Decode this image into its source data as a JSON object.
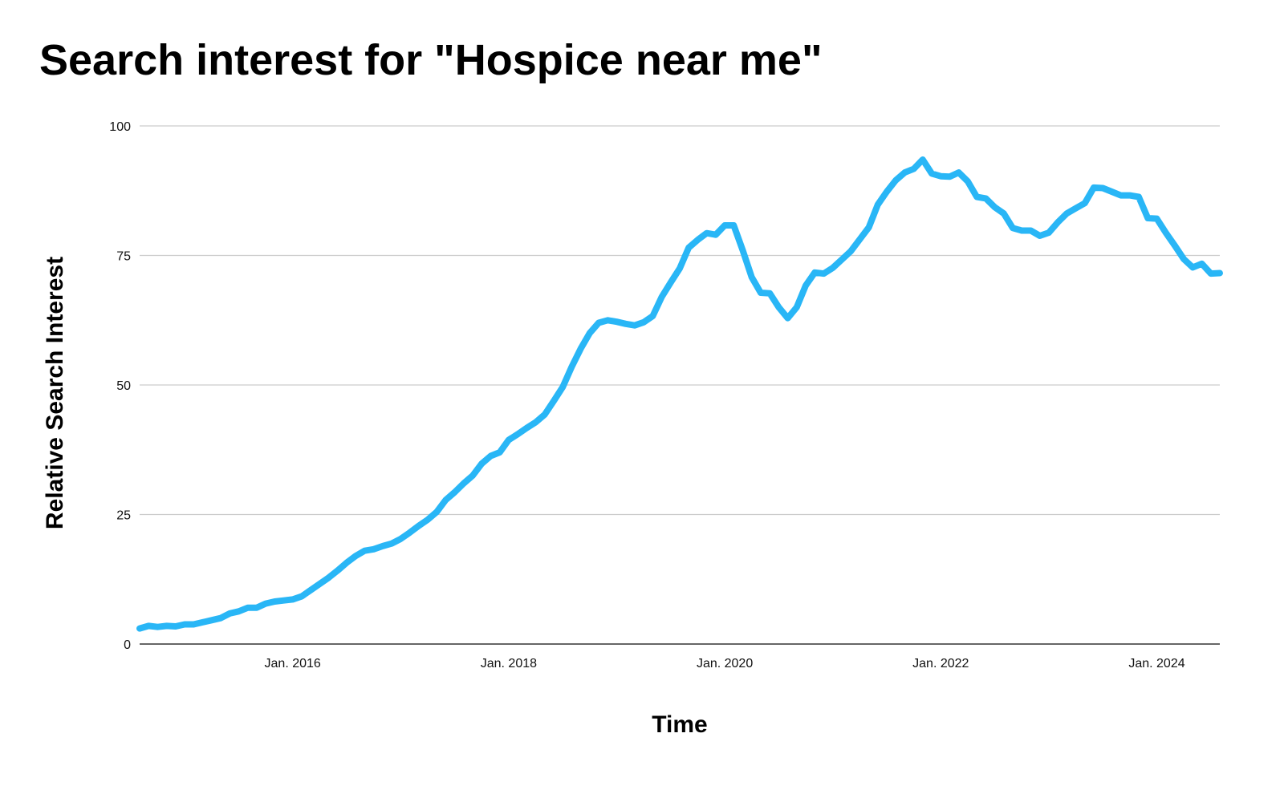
{
  "chart_data": {
    "type": "line",
    "title": "Search interest for \"Hospice near me\"",
    "xlabel": "Time",
    "ylabel": "Relative Search Interest",
    "x_ticks": [
      {
        "label": "Jan. 2016",
        "date": "2016-01"
      },
      {
        "label": "Jan. 2018",
        "date": "2018-01"
      },
      {
        "label": "Jan. 2020",
        "date": "2020-01"
      },
      {
        "label": "Jan. 2022",
        "date": "2022-01"
      },
      {
        "label": "Jan. 2024",
        "date": "2024-01"
      }
    ],
    "y_ticks": [
      0,
      25,
      50,
      75,
      100
    ],
    "xlim": [
      "2014-08",
      "2024-08"
    ],
    "ylim": [
      0,
      100
    ],
    "grid": true,
    "line_color": "#29B6F6",
    "series": [
      {
        "x": [
          "2014-08",
          "2014-09",
          "2014-10",
          "2014-11",
          "2014-12",
          "2015-01",
          "2015-02",
          "2015-03",
          "2015-04",
          "2015-05",
          "2015-06",
          "2015-07",
          "2015-08",
          "2015-09",
          "2015-10",
          "2015-11",
          "2015-12",
          "2016-01",
          "2016-02",
          "2016-03",
          "2016-04",
          "2016-05",
          "2016-06",
          "2016-07",
          "2016-08",
          "2016-09",
          "2016-10",
          "2016-11",
          "2016-12",
          "2017-01",
          "2017-02",
          "2017-03",
          "2017-04",
          "2017-05",
          "2017-06",
          "2017-07",
          "2017-08",
          "2017-09",
          "2017-10",
          "2017-11",
          "2017-12",
          "2018-01",
          "2018-02",
          "2018-03",
          "2018-04",
          "2018-05",
          "2018-06",
          "2018-07",
          "2018-08",
          "2018-09",
          "2018-10",
          "2018-11",
          "2018-12",
          "2019-01",
          "2019-02",
          "2019-03",
          "2019-04",
          "2019-05",
          "2019-06",
          "2019-07",
          "2019-08",
          "2019-09",
          "2019-10",
          "2019-11",
          "2019-12",
          "2020-01",
          "2020-02",
          "2020-03",
          "2020-04",
          "2020-05",
          "2020-06",
          "2020-07",
          "2020-08",
          "2020-09",
          "2020-10",
          "2020-11",
          "2020-12",
          "2021-01",
          "2021-02",
          "2021-03",
          "2021-04",
          "2021-05",
          "2021-06",
          "2021-07",
          "2021-08",
          "2021-09",
          "2021-10",
          "2021-11",
          "2021-12",
          "2022-01",
          "2022-02",
          "2022-03",
          "2022-04",
          "2022-05",
          "2022-06",
          "2022-07",
          "2022-08",
          "2022-09",
          "2022-10",
          "2022-11",
          "2022-12",
          "2023-01",
          "2023-02",
          "2023-03",
          "2023-04",
          "2023-05",
          "2023-06",
          "2023-07",
          "2023-08",
          "2023-09",
          "2023-10",
          "2023-11",
          "2023-12",
          "2024-01",
          "2024-02",
          "2024-03",
          "2024-04",
          "2024-05",
          "2024-06",
          "2024-07",
          "2024-08"
        ],
        "y": [
          3,
          3.5,
          3.3,
          3.5,
          3.4,
          3.8,
          3.8,
          4.2,
          4.6,
          5,
          5.9,
          6.3,
          7,
          7,
          7.8,
          8.2,
          8.4,
          8.6,
          9.2,
          10.4,
          11.6,
          12.8,
          14.2,
          15.7,
          17,
          18,
          18.3,
          18.9,
          19.4,
          20.3,
          21.5,
          22.8,
          24,
          25.5,
          27.8,
          29.3,
          31,
          32.5,
          34.8,
          36.3,
          37,
          39.4,
          40.5,
          41.7,
          42.8,
          44.3,
          46.9,
          49.6,
          53.5,
          57,
          60,
          62,
          62.5,
          62.2,
          61.8,
          61.5,
          62.1,
          63.3,
          67,
          69.8,
          72.5,
          76.5,
          78,
          79.3,
          79,
          80.8,
          80.8,
          76,
          70.8,
          67.8,
          67.7,
          65,
          62.9,
          65,
          69.2,
          71.7,
          71.5,
          72.6,
          74.2,
          75.8,
          78.1,
          80.4,
          84.8,
          87.3,
          89.5,
          91,
          91.7,
          93.5,
          90.8,
          90.3,
          90.2,
          91,
          89.3,
          86.3,
          86,
          84.3,
          83.1,
          80.3,
          79.8,
          79.8,
          78.8,
          79.4,
          81.4,
          83.1,
          84.1,
          85.1,
          88.1,
          88,
          87.3,
          86.6,
          86.6,
          86.3,
          82.2,
          82.1,
          79.4,
          76.9,
          74.3,
          72.7,
          73.4,
          71.5,
          71.6
        ]
      }
    ]
  }
}
